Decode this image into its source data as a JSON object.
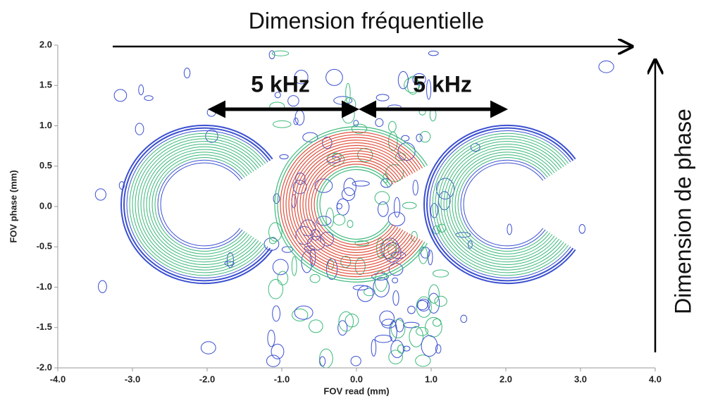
{
  "chart_data": {
    "type": "contour",
    "title": "Dimension fréquentielle",
    "y2_title": "Dimension de phase",
    "x_label": "FOV read (mm)",
    "y_label": "FOV phase (mm)",
    "annotations": [
      "5 kHz",
      "5 kHz"
    ],
    "xlim": [
      -4,
      4
    ],
    "ylim": [
      -2,
      2
    ],
    "xticks": [
      {
        "value": -4,
        "label": "-4.0"
      },
      {
        "value": -3,
        "label": "-3.0"
      },
      {
        "value": -2,
        "label": "-2.0"
      },
      {
        "value": -1,
        "label": "-1.0"
      },
      {
        "value": 0,
        "label": "0.0"
      },
      {
        "value": 1,
        "label": "1.0"
      },
      {
        "value": 2,
        "label": "2.0"
      },
      {
        "value": 3,
        "label": "3.0"
      },
      {
        "value": 4,
        "label": "4.0"
      }
    ],
    "yticks": [
      {
        "value": -2,
        "label": "-2.0"
      },
      {
        "value": -1.5,
        "label": "-1.5"
      },
      {
        "value": -1,
        "label": "-1.0"
      },
      {
        "value": -0.5,
        "label": "-0.5"
      },
      {
        "value": 0,
        "label": "0.0"
      },
      {
        "value": 0.5,
        "label": "0.5"
      },
      {
        "value": 1,
        "label": "1.0"
      },
      {
        "value": 1.5,
        "label": "1.5"
      },
      {
        "value": 2,
        "label": "2.0"
      }
    ]
  }
}
